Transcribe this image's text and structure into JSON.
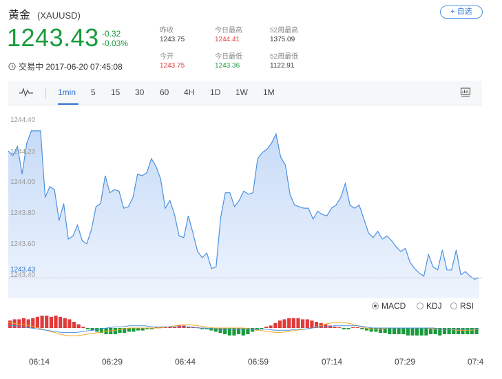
{
  "header": {
    "name": "黄金",
    "code": "(XAUUSD)",
    "add_label": "+ 自选"
  },
  "quote": {
    "price": "1243.43",
    "change": "-0.32",
    "change_pct": "-0.03%",
    "status": "交易中 2017-06-20 07:45:08"
  },
  "stats": [
    {
      "label": "昨收",
      "value": "1243.75",
      "tone": "normal"
    },
    {
      "label": "今日最高",
      "value": "1244.41",
      "tone": "red"
    },
    {
      "label": "52周最高",
      "value": "1375.09",
      "tone": "normal"
    },
    {
      "label": "今开",
      "value": "1243.75",
      "tone": "red"
    },
    {
      "label": "今日最低",
      "value": "1243.36",
      "tone": "green"
    },
    {
      "label": "52周最低",
      "value": "1122.91",
      "tone": "normal"
    }
  ],
  "toolbar": {
    "tabs": [
      "1min",
      "5",
      "15",
      "30",
      "60",
      "4H",
      "1D",
      "1W",
      "1M"
    ],
    "active": "1min"
  },
  "indicators": {
    "options": [
      "MACD",
      "KDJ",
      "RSI"
    ],
    "selected": "MACD"
  },
  "colors": {
    "line": "#4a90e2",
    "fill": "#dbe8fb",
    "up": "#1a9b3c",
    "down": "#e03b3b",
    "macd_orange": "#f5a623"
  },
  "chart_data": [
    {
      "type": "area",
      "title": "",
      "ylim": [
        1243.35,
        1244.5
      ],
      "ytick_labels": [
        "1244.40",
        "1244.20",
        "1244.00",
        "1243.80",
        "1243.60",
        "1243.40"
      ],
      "current_price_label": "1243.43",
      "x_tick_labels": [
        "06:14",
        "06:29",
        "06:44",
        "06:59",
        "07:14",
        "07:29",
        "07:4"
      ],
      "values": [
        1244.25,
        1244.22,
        1244.28,
        1244.1,
        1244.3,
        1244.38,
        1244.38,
        1244.38,
        1243.95,
        1244.02,
        1244.0,
        1243.8,
        1243.91,
        1243.68,
        1243.7,
        1243.77,
        1243.67,
        1243.65,
        1243.74,
        1243.89,
        1243.91,
        1244.09,
        1243.98,
        1244.0,
        1243.99,
        1243.88,
        1243.89,
        1243.95,
        1244.1,
        1244.09,
        1244.11,
        1244.2,
        1244.15,
        1244.07,
        1243.88,
        1243.93,
        1243.84,
        1243.7,
        1243.69,
        1243.83,
        1243.72,
        1243.6,
        1243.56,
        1243.59,
        1243.49,
        1243.5,
        1243.82,
        1243.98,
        1243.98,
        1243.89,
        1243.93,
        1243.99,
        1243.97,
        1243.98,
        1244.2,
        1244.24,
        1244.26,
        1244.3,
        1244.36,
        1244.21,
        1244.16,
        1243.97,
        1243.9,
        1243.89,
        1243.88,
        1243.88,
        1243.81,
        1243.86,
        1243.84,
        1243.83,
        1243.88,
        1243.9,
        1243.95,
        1244.04,
        1243.9,
        1243.88,
        1243.9,
        1243.81,
        1243.72,
        1243.69,
        1243.73,
        1243.68,
        1243.7,
        1243.67,
        1243.63,
        1243.6,
        1243.62,
        1243.53,
        1243.49,
        1243.46,
        1243.44,
        1243.58,
        1243.5,
        1243.48,
        1243.61,
        1243.48,
        1243.48,
        1243.61,
        1243.45,
        1243.47,
        1243.44,
        1243.42,
        1243.43
      ]
    },
    {
      "type": "bar",
      "title": "MACD",
      "values": [
        0.06,
        0.07,
        0.07,
        0.08,
        0.07,
        0.08,
        0.09,
        0.1,
        0.1,
        0.09,
        0.1,
        0.09,
        0.08,
        0.07,
        0.05,
        0.03,
        0.01,
        -0.01,
        -0.02,
        -0.03,
        -0.04,
        -0.05,
        -0.05,
        -0.05,
        -0.04,
        -0.04,
        -0.03,
        -0.03,
        -0.02,
        -0.02,
        -0.01,
        -0.01,
        0.0,
        0.0,
        0.01,
        0.01,
        0.01,
        0.02,
        0.02,
        0.01,
        0.01,
        0.0,
        -0.01,
        -0.01,
        -0.02,
        -0.03,
        -0.04,
        -0.05,
        -0.06,
        -0.06,
        -0.05,
        -0.06,
        -0.05,
        -0.03,
        -0.02,
        -0.01,
        0.01,
        0.02,
        0.04,
        0.06,
        0.07,
        0.08,
        0.08,
        0.08,
        0.07,
        0.07,
        0.06,
        0.05,
        0.04,
        0.03,
        0.02,
        0.01,
        0.0,
        -0.01,
        -0.01,
        0.0,
        0.0,
        -0.01,
        -0.02,
        -0.03,
        -0.03,
        -0.04,
        -0.04,
        -0.05,
        -0.05,
        -0.05,
        -0.05,
        -0.06,
        -0.06,
        -0.06,
        -0.06,
        -0.06,
        -0.05,
        -0.05,
        -0.06,
        -0.05,
        -0.05,
        -0.05,
        -0.05,
        -0.05,
        -0.05,
        -0.05,
        -0.05
      ],
      "dif": [
        0.05,
        0.04,
        0.03,
        0.02,
        0.0,
        -0.02,
        -0.04,
        -0.06,
        -0.07,
        -0.07,
        -0.06,
        -0.05,
        -0.04,
        -0.03,
        -0.02,
        -0.01,
        0.0,
        0.0,
        0.0,
        0.0,
        0.0,
        0.01,
        0.02,
        0.03,
        0.03,
        0.02,
        0.01,
        0.0,
        0.0,
        0.0,
        0.0,
        0.0,
        -0.01,
        -0.02,
        -0.03,
        -0.04,
        -0.04,
        -0.03,
        -0.02,
        -0.01,
        0.0,
        0.02,
        0.04,
        0.05,
        0.05,
        0.04,
        0.02,
        0.0,
        -0.01,
        -0.01,
        0.0,
        0.0,
        0.0,
        0.0,
        0.0,
        0.0,
        -0.01,
        -0.01,
        -0.01,
        -0.02,
        -0.02,
        -0.02,
        -0.01
      ],
      "dea": [
        0.02,
        0.02,
        0.01,
        0.0,
        -0.01,
        -0.02,
        -0.03,
        -0.04,
        -0.04,
        -0.04,
        -0.03,
        -0.02,
        -0.01,
        0.0,
        0.01,
        0.01,
        0.02,
        0.02,
        0.02,
        0.01,
        0.01,
        0.01,
        0.01,
        0.01,
        0.01,
        0.0,
        0.0,
        -0.01,
        -0.01,
        -0.01,
        -0.01,
        -0.01,
        -0.01,
        -0.01,
        -0.01,
        -0.02,
        -0.02,
        -0.02,
        -0.01,
        -0.01,
        0.0,
        0.01,
        0.01,
        0.02,
        0.02,
        0.02,
        0.02,
        0.01,
        0.0,
        0.0,
        0.0,
        0.0,
        0.0,
        0.0,
        0.0,
        0.0,
        0.0,
        -0.01,
        -0.01,
        -0.01,
        -0.01,
        -0.01,
        -0.01
      ]
    }
  ]
}
